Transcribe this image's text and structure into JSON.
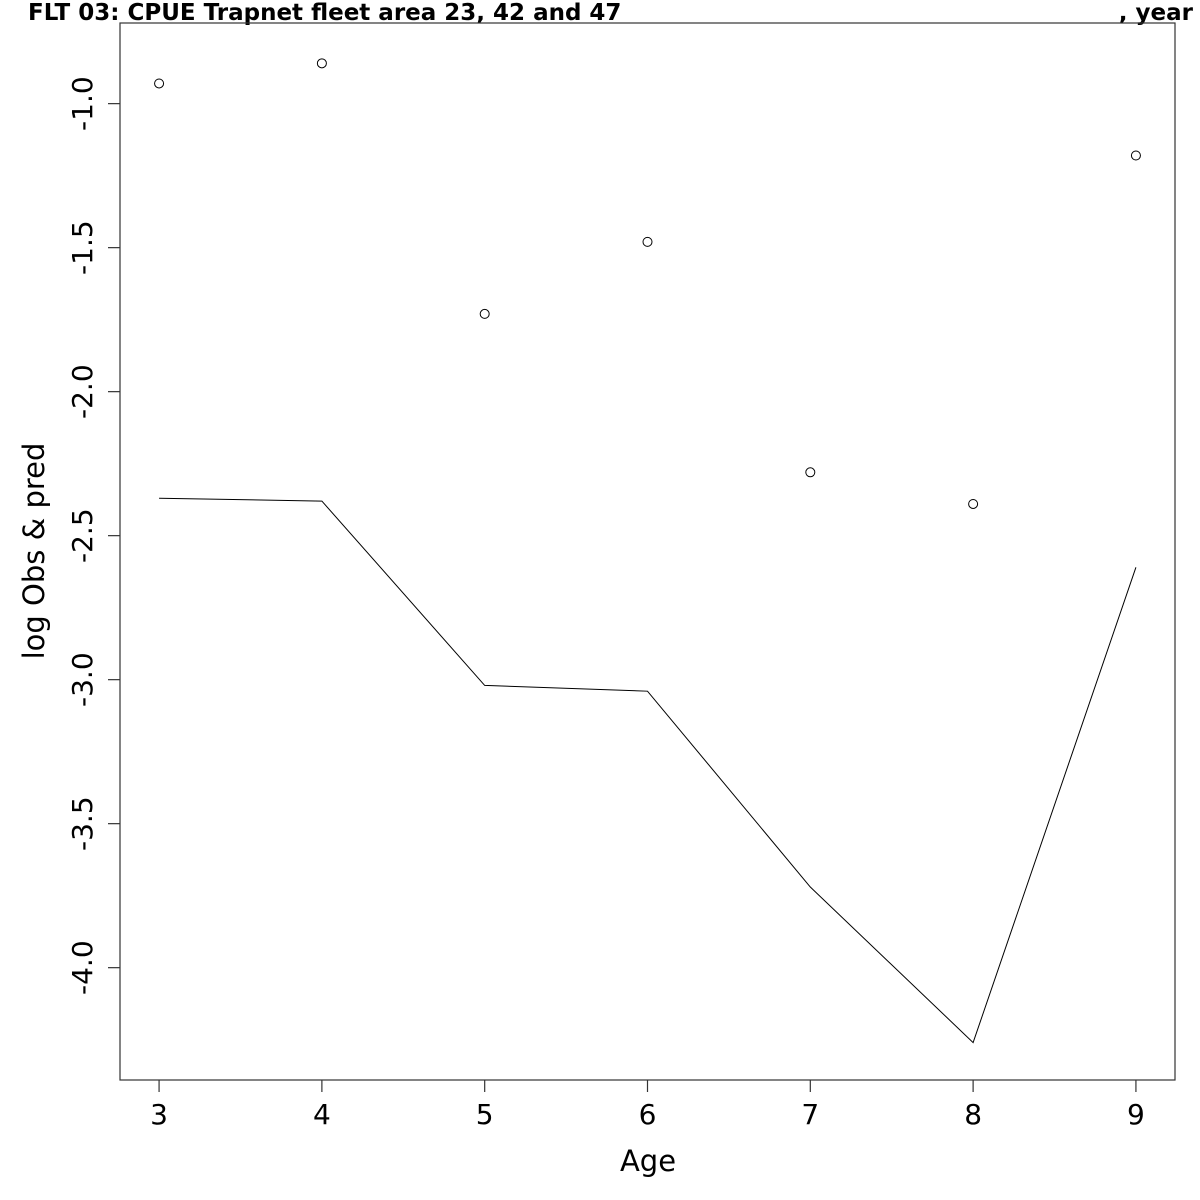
{
  "chart_data": {
    "type": "line",
    "title": "FLT 03: CPUE Trapnet fleet area 23, 42 and 47",
    "title_right": ", year",
    "xlabel": "Age",
    "ylabel": "log Obs & pred",
    "xlim": [
      2.76,
      9.24
    ],
    "ylim": [
      -4.39,
      -0.72
    ],
    "x_ticks": [
      3,
      4,
      5,
      6,
      7,
      8,
      9
    ],
    "y_ticks": [
      -4.0,
      -3.5,
      -3.0,
      -2.5,
      -2.0,
      -1.5,
      -1.0
    ],
    "y_tick_labels": [
      "-4.0",
      "-3.5",
      "-3.0",
      "-2.5",
      "-2.0",
      "-1.5",
      "-1.0"
    ],
    "grid": false,
    "series": [
      {
        "kind": "points",
        "x": [
          3,
          4,
          5,
          6,
          7,
          8,
          9
        ],
        "y": [
          -0.93,
          -0.86,
          -1.73,
          -1.48,
          -2.28,
          -2.39,
          -1.18
        ]
      },
      {
        "kind": "line",
        "x": [
          3,
          4,
          5,
          6,
          7,
          8,
          9
        ],
        "y": [
          -2.37,
          -2.38,
          -3.02,
          -3.04,
          -3.72,
          -4.26,
          -2.61
        ]
      }
    ]
  }
}
